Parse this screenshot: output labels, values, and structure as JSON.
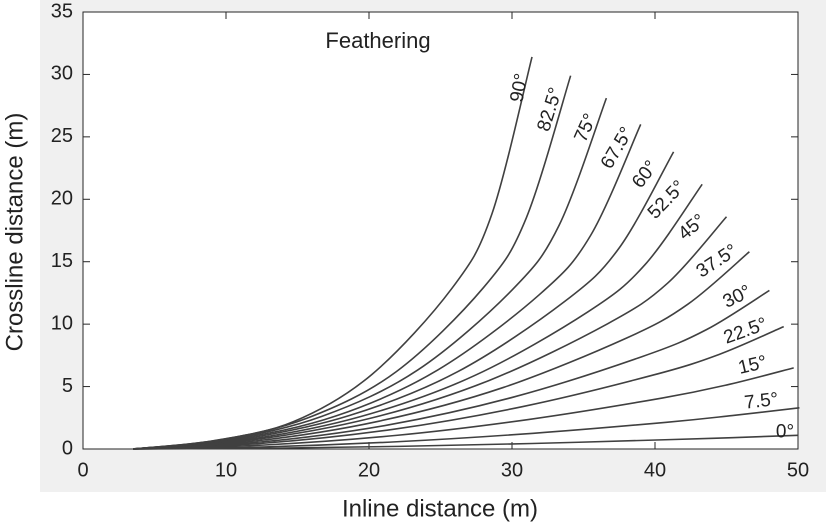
{
  "chart_data": {
    "type": "line",
    "title": "Feathering",
    "xlabel": "Inline distance (m)",
    "ylabel": "Crossline distance (m)",
    "xlim": [
      0,
      50
    ],
    "xticks": [
      0,
      10,
      20,
      30,
      40,
      50
    ],
    "ylim": [
      0,
      35
    ],
    "yticks": [
      0,
      5,
      10,
      15,
      20,
      25,
      30,
      35
    ],
    "series": [
      {
        "name": "0°",
        "color": "#404040",
        "x": [
          3.5,
          12.8,
          22.1,
          31.4,
          40.7,
          45.4,
          50
        ],
        "values": [
          0,
          0.06,
          0.21,
          0.44,
          0.74,
          0.91,
          1.1
        ]
      },
      {
        "name": "7.5°",
        "color": "#404040",
        "x": [
          3.5,
          12.8,
          22.1,
          31.5,
          40.8,
          45.4,
          50.1
        ],
        "values": [
          0,
          0.17,
          0.59,
          1.26,
          2.14,
          2.68,
          3.3
        ]
      },
      {
        "name": "15°",
        "color": "#404040",
        "x": [
          3.5,
          12.7,
          22.0,
          31.2,
          40.5,
          45.1,
          49.7
        ],
        "values": [
          0,
          0.32,
          1.1,
          2.37,
          4.08,
          5.15,
          6.5
        ]
      },
      {
        "name": "22.5°",
        "color": "#404040",
        "x": [
          3.5,
          12.6,
          21.7,
          30.8,
          39.9,
          44.5,
          49
        ],
        "values": [
          0,
          0.46,
          1.58,
          3.41,
          5.93,
          7.58,
          9.8
        ]
      },
      {
        "name": "30°",
        "color": "#404040",
        "x": [
          3.5,
          12.4,
          21.3,
          30.2,
          39.1,
          43.6,
          48
        ],
        "values": [
          0,
          0.56,
          1.92,
          4.19,
          7.4,
          9.56,
          12.7
        ]
      },
      {
        "name": "37.5°",
        "color": "#404040",
        "x": [
          3.5,
          12.1,
          20.7,
          29.4,
          38.0,
          42.3,
          46.6
        ],
        "values": [
          0,
          0.65,
          2.23,
          4.93,
          8.88,
          11.6,
          15.8
        ]
      },
      {
        "name": "45°",
        "color": "#404040",
        "x": [
          3.5,
          11.8,
          20.1,
          28.4,
          36.7,
          40.9,
          45
        ],
        "values": [
          0,
          0.72,
          2.46,
          5.49,
          10.04,
          13.3,
          18.6
        ]
      },
      {
        "name": "52.5°",
        "color": "#404040",
        "x": [
          3.5,
          11.5,
          19.4,
          27.4,
          35.3,
          39.3,
          43.3
        ],
        "values": [
          0,
          0.76,
          2.59,
          5.89,
          10.98,
          14.76,
          21.2
        ]
      },
      {
        "name": "60°",
        "color": "#404040",
        "x": [
          3.5,
          11.1,
          18.6,
          26.2,
          33.7,
          37.5,
          41.3
        ],
        "values": [
          0,
          0.79,
          2.67,
          6.19,
          11.83,
          16.11,
          23.8
        ]
      },
      {
        "name": "67.5°",
        "color": "#404040",
        "x": [
          3.5,
          10.6,
          17.7,
          24.8,
          31.9,
          35.5,
          39
        ],
        "values": [
          0,
          0.79,
          2.65,
          6.32,
          12.35,
          17.11,
          26
        ]
      },
      {
        "name": "75°",
        "color": "#404040",
        "x": [
          3.5,
          10.1,
          16.7,
          23.4,
          30.0,
          33.3,
          36.6
        ],
        "values": [
          0,
          0.77,
          2.61,
          6.32,
          12.73,
          17.93,
          28.1
        ]
      },
      {
        "name": "82.5°",
        "color": "#404040",
        "x": [
          3.5,
          9.6,
          15.7,
          21.9,
          28.0,
          31.0,
          34.1
        ],
        "values": [
          0,
          0.74,
          2.48,
          6.19,
          12.92,
          18.51,
          29.9
        ]
      },
      {
        "name": "90°",
        "color": "#404040",
        "x": [
          3.5,
          9.1,
          14.7,
          20.2,
          25.8,
          28.6,
          31.4
        ],
        "values": [
          0,
          0.66,
          2.18,
          5.97,
          12.87,
          18.84,
          31.4
        ]
      }
    ]
  }
}
